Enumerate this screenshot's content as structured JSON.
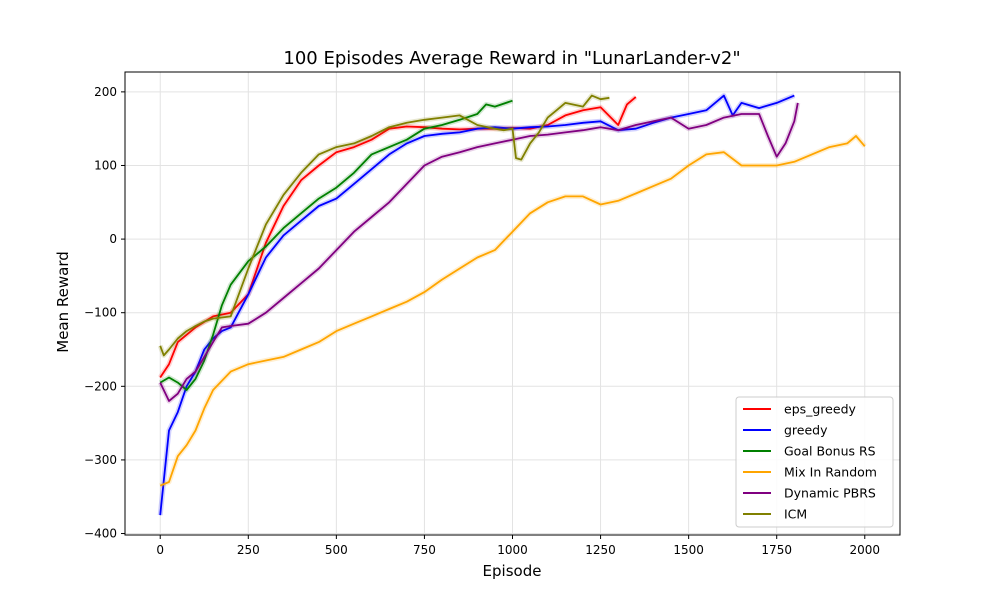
{
  "chart_data": {
    "type": "line",
    "title": "100 Episodes Average Reward in \"LunarLander-v2\"",
    "xlabel": "Episode",
    "ylabel": "Mean Reward",
    "xlim": [
      -100,
      2100
    ],
    "ylim": [
      -402,
      227
    ],
    "xticks": [
      0,
      250,
      500,
      750,
      1000,
      1250,
      1500,
      1750,
      2000
    ],
    "yticks": [
      -400,
      -300,
      -200,
      -100,
      0,
      100,
      200
    ],
    "grid": true,
    "legend_position": "lower-right",
    "series": [
      {
        "name": "eps_greedy",
        "color": "#ff0000",
        "x": [
          0,
          25,
          50,
          100,
          150,
          200,
          250,
          300,
          350,
          400,
          450,
          500,
          550,
          600,
          650,
          700,
          750,
          800,
          850,
          900,
          950,
          1000,
          1050,
          1100,
          1150,
          1200,
          1250,
          1300,
          1325,
          1350
        ],
        "y": [
          -188,
          -170,
          -140,
          -120,
          -105,
          -100,
          -75,
          -5,
          45,
          80,
          100,
          118,
          125,
          135,
          150,
          153,
          152,
          150,
          149,
          150,
          150,
          151,
          150,
          155,
          168,
          175,
          179,
          155,
          183,
          193
        ]
      },
      {
        "name": "greedy",
        "color": "#0000ff",
        "x": [
          0,
          25,
          50,
          75,
          100,
          125,
          150,
          175,
          200,
          250,
          300,
          350,
          400,
          450,
          500,
          550,
          600,
          650,
          700,
          750,
          800,
          850,
          900,
          950,
          1000,
          1050,
          1100,
          1150,
          1200,
          1250,
          1300,
          1350,
          1400,
          1450,
          1500,
          1550,
          1600,
          1625,
          1650,
          1700,
          1750,
          1800
        ],
        "y": [
          -375,
          -260,
          -235,
          -200,
          -180,
          -150,
          -135,
          -125,
          -120,
          -75,
          -25,
          5,
          25,
          45,
          55,
          75,
          95,
          115,
          130,
          140,
          143,
          145,
          150,
          152,
          150,
          152,
          153,
          155,
          158,
          160,
          148,
          150,
          158,
          165,
          170,
          175,
          195,
          168,
          185,
          178,
          185,
          195
        ]
      },
      {
        "name": "Goal Bonus RS",
        "color": "#008000",
        "x": [
          0,
          25,
          50,
          75,
          100,
          125,
          150,
          175,
          200,
          250,
          300,
          350,
          400,
          450,
          500,
          550,
          600,
          650,
          700,
          750,
          800,
          850,
          900,
          925,
          950,
          1000
        ],
        "y": [
          -195,
          -188,
          -195,
          -205,
          -190,
          -165,
          -130,
          -90,
          -62,
          -30,
          -10,
          15,
          35,
          55,
          70,
          90,
          115,
          125,
          135,
          150,
          155,
          162,
          170,
          183,
          180,
          188
        ]
      },
      {
        "name": "Mix In Random",
        "color": "#ffa500",
        "x": [
          0,
          25,
          50,
          75,
          100,
          125,
          150,
          200,
          250,
          300,
          350,
          400,
          450,
          500,
          550,
          600,
          650,
          700,
          750,
          800,
          850,
          900,
          950,
          1000,
          1050,
          1100,
          1150,
          1200,
          1250,
          1300,
          1350,
          1400,
          1450,
          1500,
          1550,
          1600,
          1650,
          1700,
          1750,
          1800,
          1850,
          1900,
          1950,
          1975,
          2000
        ],
        "y": [
          -335,
          -330,
          -295,
          -280,
          -260,
          -230,
          -205,
          -180,
          -170,
          -165,
          -160,
          -150,
          -140,
          -125,
          -115,
          -105,
          -95,
          -85,
          -72,
          -55,
          -40,
          -25,
          -15,
          10,
          35,
          50,
          58,
          58,
          47,
          52,
          62,
          72,
          82,
          100,
          115,
          118,
          100,
          100,
          100,
          105,
          115,
          125,
          130,
          140,
          126
        ]
      },
      {
        "name": "Dynamic PBRS",
        "color": "#800080",
        "x": [
          0,
          25,
          50,
          75,
          100,
          125,
          150,
          175,
          200,
          250,
          300,
          350,
          400,
          450,
          500,
          550,
          600,
          650,
          700,
          750,
          800,
          850,
          900,
          950,
          1000,
          1050,
          1100,
          1150,
          1200,
          1250,
          1300,
          1350,
          1400,
          1450,
          1500,
          1550,
          1600,
          1650,
          1700,
          1725,
          1750,
          1775,
          1800,
          1810
        ],
        "y": [
          -195,
          -220,
          -210,
          -190,
          -180,
          -160,
          -140,
          -120,
          -118,
          -115,
          -100,
          -80,
          -60,
          -40,
          -15,
          10,
          30,
          50,
          75,
          100,
          112,
          118,
          125,
          130,
          135,
          140,
          142,
          145,
          148,
          152,
          148,
          155,
          160,
          165,
          150,
          155,
          165,
          170,
          170,
          140,
          112,
          130,
          160,
          185
        ]
      },
      {
        "name": "ICM",
        "color": "#808000",
        "x": [
          0,
          10,
          25,
          50,
          75,
          100,
          125,
          150,
          200,
          250,
          300,
          350,
          400,
          450,
          500,
          550,
          600,
          650,
          700,
          750,
          800,
          850,
          900,
          950,
          975,
          1000,
          1010,
          1025,
          1050,
          1075,
          1100,
          1125,
          1150,
          1200,
          1225,
          1250,
          1275
        ],
        "y": [
          -145,
          -158,
          -150,
          -135,
          -125,
          -118,
          -112,
          -108,
          -105,
          -40,
          20,
          60,
          90,
          115,
          125,
          130,
          140,
          152,
          158,
          162,
          165,
          168,
          155,
          150,
          148,
          150,
          110,
          108,
          130,
          145,
          165,
          175,
          185,
          180,
          195,
          190,
          192
        ]
      }
    ]
  }
}
